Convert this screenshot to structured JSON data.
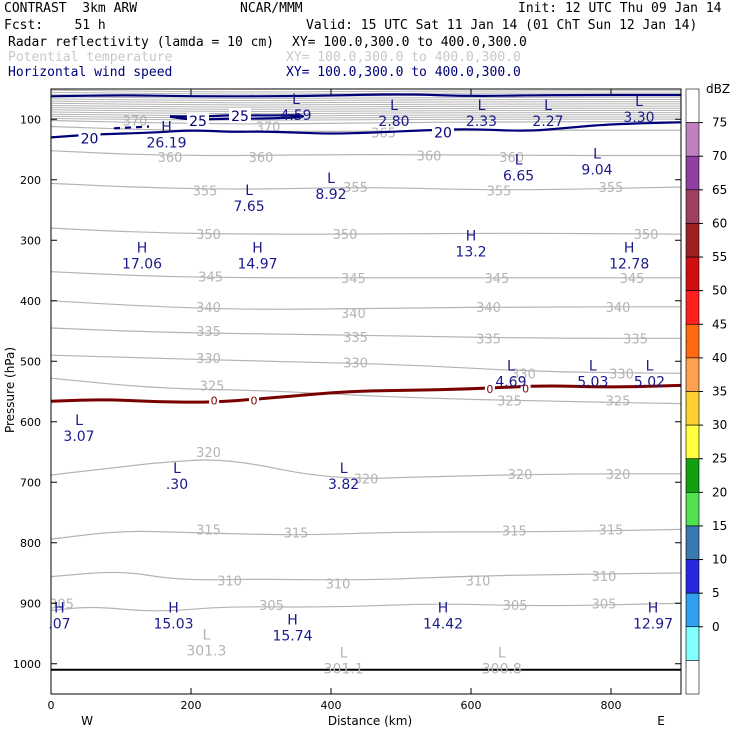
{
  "header": {
    "model": "CONTRAST  3km ARW",
    "agency": "NCAR/MMM",
    "init": "Init: 12 UTC Thu 09 Jan 14",
    "fcst": "Fcst:    51 h",
    "valid": "Valid: 15 UTC Sat 11 Jan 14 (01 ChT Sun 12 Jan 14)",
    "fields": [
      {
        "name": "Radar reflectivity (lamda = 10 cm)",
        "xy": "XY= 100.0,300.0 to 400.0,300.0"
      },
      {
        "name": "Potential temperature",
        "xy": "XY= 100.0,300.0 to 400.0,300.0"
      },
      {
        "name": "Horizontal wind speed",
        "xy": "XY= 100.0,300.0 to 400.0,300.0"
      }
    ]
  },
  "colors": {
    "theta": "#b4b4b4",
    "wind": "#00007a",
    "zero_line": "#7a0000",
    "text": "#000000"
  },
  "chart_data": {
    "type": "cross-section",
    "xlabel": "Distance (km)",
    "ylabel": "Pressure (hPa)",
    "xlim": [
      0,
      900
    ],
    "ylim": [
      1050,
      50
    ],
    "x_ticks": [
      0,
      200,
      400,
      600,
      800
    ],
    "y_ticks": [
      100,
      200,
      300,
      400,
      500,
      600,
      700,
      800,
      900,
      1000
    ],
    "x_endpoints": [
      "W",
      "E"
    ],
    "colorbar": {
      "unit": "dBZ",
      "levels": [
        "75",
        "70",
        "65",
        "60",
        "55",
        "50",
        "45",
        "40",
        "35",
        "30",
        "25",
        "20",
        "15",
        "10",
        "5",
        "0"
      ],
      "colors": [
        "#ffffff",
        "#c080c0",
        "#9040a0",
        "#a04060",
        "#a02020",
        "#d01010",
        "#ff2020",
        "#ff6a10",
        "#ffa050",
        "#ffd030",
        "#ffff40",
        "#10a010",
        "#50e050",
        "#3a78b0",
        "#2828e0",
        "#30a0f0",
        "#80ffff",
        "#ffffff"
      ]
    },
    "theta_contours": [
      {
        "value": 305,
        "labels": [
          [
            15,
            900
          ],
          [
            315,
            903
          ],
          [
            663,
            903
          ],
          [
            790,
            900
          ]
        ],
        "line": [
          [
            0,
            912
          ],
          [
            60,
            905
          ],
          [
            150,
            915
          ],
          [
            250,
            905
          ],
          [
            400,
            907
          ],
          [
            550,
            900
          ],
          [
            700,
            905
          ],
          [
            900,
            900
          ]
        ]
      },
      {
        "value": 310,
        "labels": [
          [
            255,
            862
          ],
          [
            410,
            867
          ],
          [
            610,
            862
          ],
          [
            790,
            855
          ]
        ],
        "line": [
          [
            0,
            856
          ],
          [
            100,
            846
          ],
          [
            180,
            862
          ],
          [
            300,
            860
          ],
          [
            450,
            862
          ],
          [
            600,
            855
          ],
          [
            750,
            852
          ],
          [
            900,
            850
          ]
        ]
      },
      {
        "value": 315,
        "labels": [
          [
            225,
            778
          ],
          [
            350,
            783
          ],
          [
            662,
            780
          ],
          [
            800,
            778
          ]
        ],
        "line": [
          [
            0,
            794
          ],
          [
            100,
            780
          ],
          [
            200,
            783
          ],
          [
            350,
            788
          ],
          [
            500,
            782
          ],
          [
            700,
            782
          ],
          [
            900,
            778
          ]
        ]
      },
      {
        "value": 320,
        "labels": [
          [
            225,
            650
          ],
          [
            450,
            694
          ],
          [
            670,
            686
          ],
          [
            810,
            686
          ]
        ],
        "line": [
          [
            0,
            688
          ],
          [
            120,
            672
          ],
          [
            150,
            668
          ],
          [
            250,
            660
          ],
          [
            400,
            696
          ],
          [
            560,
            690
          ],
          [
            750,
            686
          ],
          [
            900,
            686
          ]
        ]
      },
      {
        "value": 325,
        "labels": [
          [
            230,
            540
          ],
          [
            655,
            565
          ],
          [
            810,
            565
          ]
        ],
        "line": [
          [
            0,
            528
          ],
          [
            150,
            545
          ],
          [
            300,
            548
          ],
          [
            500,
            560
          ],
          [
            700,
            566
          ],
          [
            900,
            570
          ]
        ]
      },
      {
        "value": 330,
        "labels": [
          [
            225,
            495
          ],
          [
            435,
            502
          ],
          [
            675,
            520
          ],
          [
            815,
            520
          ]
        ],
        "line": [
          [
            0,
            490
          ],
          [
            150,
            495
          ],
          [
            300,
            500
          ],
          [
            500,
            505
          ],
          [
            700,
            518
          ],
          [
            900,
            520
          ]
        ]
      },
      {
        "value": 335,
        "labels": [
          [
            225,
            450
          ],
          [
            435,
            460
          ],
          [
            625,
            462
          ],
          [
            835,
            462
          ]
        ],
        "line": [
          [
            0,
            445
          ],
          [
            150,
            452
          ],
          [
            300,
            455
          ],
          [
            500,
            458
          ],
          [
            700,
            462
          ],
          [
            900,
            462
          ]
        ]
      },
      {
        "value": 340,
        "labels": [
          [
            225,
            410
          ],
          [
            432,
            420
          ],
          [
            625,
            410
          ],
          [
            810,
            410
          ]
        ],
        "line": [
          [
            0,
            400
          ],
          [
            150,
            410
          ],
          [
            300,
            415
          ],
          [
            500,
            412
          ],
          [
            700,
            410
          ],
          [
            900,
            410
          ]
        ]
      },
      {
        "value": 345,
        "labels": [
          [
            228,
            360
          ],
          [
            432,
            362
          ],
          [
            637,
            362
          ],
          [
            830,
            362
          ]
        ],
        "line": [
          [
            0,
            352
          ],
          [
            150,
            360
          ],
          [
            300,
            362
          ],
          [
            500,
            362
          ],
          [
            700,
            362
          ],
          [
            900,
            362
          ]
        ]
      },
      {
        "value": 350,
        "labels": [
          [
            225,
            290
          ],
          [
            420,
            290
          ],
          [
            850,
            290
          ]
        ],
        "line": [
          [
            0,
            280
          ],
          [
            150,
            288
          ],
          [
            300,
            290
          ],
          [
            450,
            290
          ],
          [
            650,
            288
          ],
          [
            900,
            290
          ]
        ]
      },
      {
        "value": 355,
        "labels": [
          [
            220,
            218
          ],
          [
            435,
            212
          ],
          [
            640,
            218
          ],
          [
            800,
            212
          ]
        ],
        "line": [
          [
            0,
            206
          ],
          [
            150,
            214
          ],
          [
            300,
            216
          ],
          [
            450,
            212
          ],
          [
            650,
            218
          ],
          [
            900,
            212
          ]
        ]
      },
      {
        "value": 360,
        "labels": [
          [
            170,
            162
          ],
          [
            300,
            162
          ],
          [
            540,
            160
          ],
          [
            658,
            162
          ]
        ],
        "line": [
          [
            0,
            152
          ],
          [
            150,
            160
          ],
          [
            300,
            160
          ],
          [
            450,
            158
          ],
          [
            650,
            160
          ],
          [
            900,
            160
          ]
        ]
      },
      {
        "value": 365,
        "labels": [
          [
            475,
            122
          ],
          [
            560,
            118
          ]
        ],
        "line": [
          [
            0,
            112
          ],
          [
            150,
            118
          ],
          [
            300,
            120
          ],
          [
            450,
            120
          ],
          [
            650,
            118
          ],
          [
            900,
            118
          ]
        ]
      },
      {
        "value": 370,
        "labels": [
          [
            310,
            112
          ],
          [
            120,
            102
          ]
        ],
        "line": [
          [
            0,
            102
          ],
          [
            150,
            106
          ],
          [
            300,
            108
          ],
          [
            450,
            106
          ],
          [
            650,
            104
          ],
          [
            900,
            104
          ]
        ]
      }
    ],
    "zero_contour": {
      "value": 0,
      "labels": [
        [
          233,
          565
        ],
        [
          290,
          565
        ],
        [
          627,
          546
        ],
        [
          678,
          545
        ]
      ],
      "line": [
        [
          0,
          566
        ],
        [
          80,
          563
        ],
        [
          150,
          567
        ],
        [
          230,
          568
        ],
        [
          300,
          562
        ],
        [
          420,
          550
        ],
        [
          500,
          548
        ],
        [
          600,
          546
        ],
        [
          700,
          540
        ],
        [
          800,
          543
        ],
        [
          900,
          540
        ]
      ]
    },
    "wind_contours": [
      {
        "value": 20,
        "labels": [
          [
            55,
            132
          ],
          [
            560,
            122
          ]
        ],
        "line": [
          [
            0,
            130
          ],
          [
            60,
            125
          ],
          [
            150,
            122
          ],
          [
            200,
            118
          ],
          [
            260,
            121
          ],
          [
            300,
            120
          ],
          [
            350,
            122
          ],
          [
            400,
            124
          ],
          [
            460,
            122
          ],
          [
            540,
            118
          ],
          [
            600,
            116
          ],
          [
            680,
            120
          ],
          [
            740,
            114
          ],
          [
            800,
            108
          ],
          [
            900,
            105
          ]
        ]
      },
      {
        "value": 25,
        "labels": [
          [
            270,
            95
          ],
          [
            210,
            103
          ]
        ],
        "line": [
          [
            170,
            95
          ],
          [
            210,
            96
          ],
          [
            260,
            93
          ],
          [
            300,
            94
          ],
          [
            360,
            93
          ],
          [
            360,
            97
          ],
          [
            300,
            99
          ],
          [
            250,
            99
          ],
          [
            200,
            101
          ],
          [
            170,
            96
          ]
        ]
      },
      {
        "value": 20,
        "labels": [],
        "line": [
          [
            0,
            62
          ],
          [
            100,
            60
          ],
          [
            200,
            62
          ],
          [
            350,
            62
          ],
          [
            500,
            58
          ],
          [
            600,
            62
          ],
          [
            700,
            60
          ],
          [
            900,
            60
          ]
        ]
      }
    ],
    "highs_lows": [
      {
        "type": "L",
        "value": "4.59",
        "km": 350,
        "hpa": 75,
        "color": "blue"
      },
      {
        "type": "L",
        "value": "2.80",
        "km": 490,
        "hpa": 85,
        "color": "blue"
      },
      {
        "type": "L",
        "value": "2.33",
        "km": 615,
        "hpa": 85,
        "color": "blue"
      },
      {
        "type": "L",
        "value": "2.27",
        "km": 710,
        "hpa": 85,
        "color": "blue"
      },
      {
        "type": "L",
        "value": "3.30",
        "km": 840,
        "hpa": 78,
        "color": "blue"
      },
      {
        "type": "H",
        "value": "26.19",
        "km": 165,
        "hpa": 120,
        "color": "blue"
      },
      {
        "type": "L",
        "value": "6.65",
        "km": 668,
        "hpa": 175,
        "color": "blue"
      },
      {
        "type": "L",
        "value": "9.04",
        "km": 780,
        "hpa": 165,
        "color": "blue"
      },
      {
        "type": "L",
        "value": "7.65",
        "km": 283,
        "hpa": 225,
        "color": "blue"
      },
      {
        "type": "L",
        "value": "8.92",
        "km": 400,
        "hpa": 205,
        "color": "blue"
      },
      {
        "type": "H",
        "value": "17.06",
        "km": 130,
        "hpa": 320,
        "color": "blue"
      },
      {
        "type": "H",
        "value": "14.97",
        "km": 295,
        "hpa": 320,
        "color": "blue"
      },
      {
        "type": "H",
        "value": "13.2",
        "km": 600,
        "hpa": 300,
        "color": "blue"
      },
      {
        "type": "H",
        "value": "12.78",
        "km": 826,
        "hpa": 320,
        "color": "blue"
      },
      {
        "type": "L",
        "value": "4.69",
        "km": 657,
        "hpa": 515,
        "color": "blue"
      },
      {
        "type": "L",
        "value": "5.03",
        "km": 774,
        "hpa": 515,
        "color": "blue"
      },
      {
        "type": "L",
        "value": "5.02",
        "km": 855,
        "hpa": 515,
        "color": "blue"
      },
      {
        "type": "L",
        "value": "3.07",
        "km": 40,
        "hpa": 605,
        "color": "blue"
      },
      {
        "type": "L",
        "value": ".30",
        "km": 180,
        "hpa": 685,
        "color": "blue"
      },
      {
        "type": "L",
        "value": "3.82",
        "km": 418,
        "hpa": 685,
        "color": "blue"
      },
      {
        "type": "H",
        "value": ".07",
        "km": 12,
        "hpa": 915,
        "color": "blue"
      },
      {
        "type": "H",
        "value": "15.03",
        "km": 175,
        "hpa": 915,
        "color": "blue"
      },
      {
        "type": "H",
        "value": "15.74",
        "km": 345,
        "hpa": 935,
        "color": "blue"
      },
      {
        "type": "H",
        "value": "14.42",
        "km": 560,
        "hpa": 915,
        "color": "blue"
      },
      {
        "type": "H",
        "value": "12.97",
        "km": 860,
        "hpa": 915,
        "color": "blue"
      },
      {
        "type": "L",
        "value": "301.3",
        "km": 222,
        "hpa": 960,
        "color": "gray"
      },
      {
        "type": "L",
        "value": "301.1",
        "km": 418,
        "hpa": 990,
        "color": "gray"
      },
      {
        "type": "L",
        "value": "300.8",
        "km": 644,
        "hpa": 990,
        "color": "gray"
      }
    ]
  }
}
